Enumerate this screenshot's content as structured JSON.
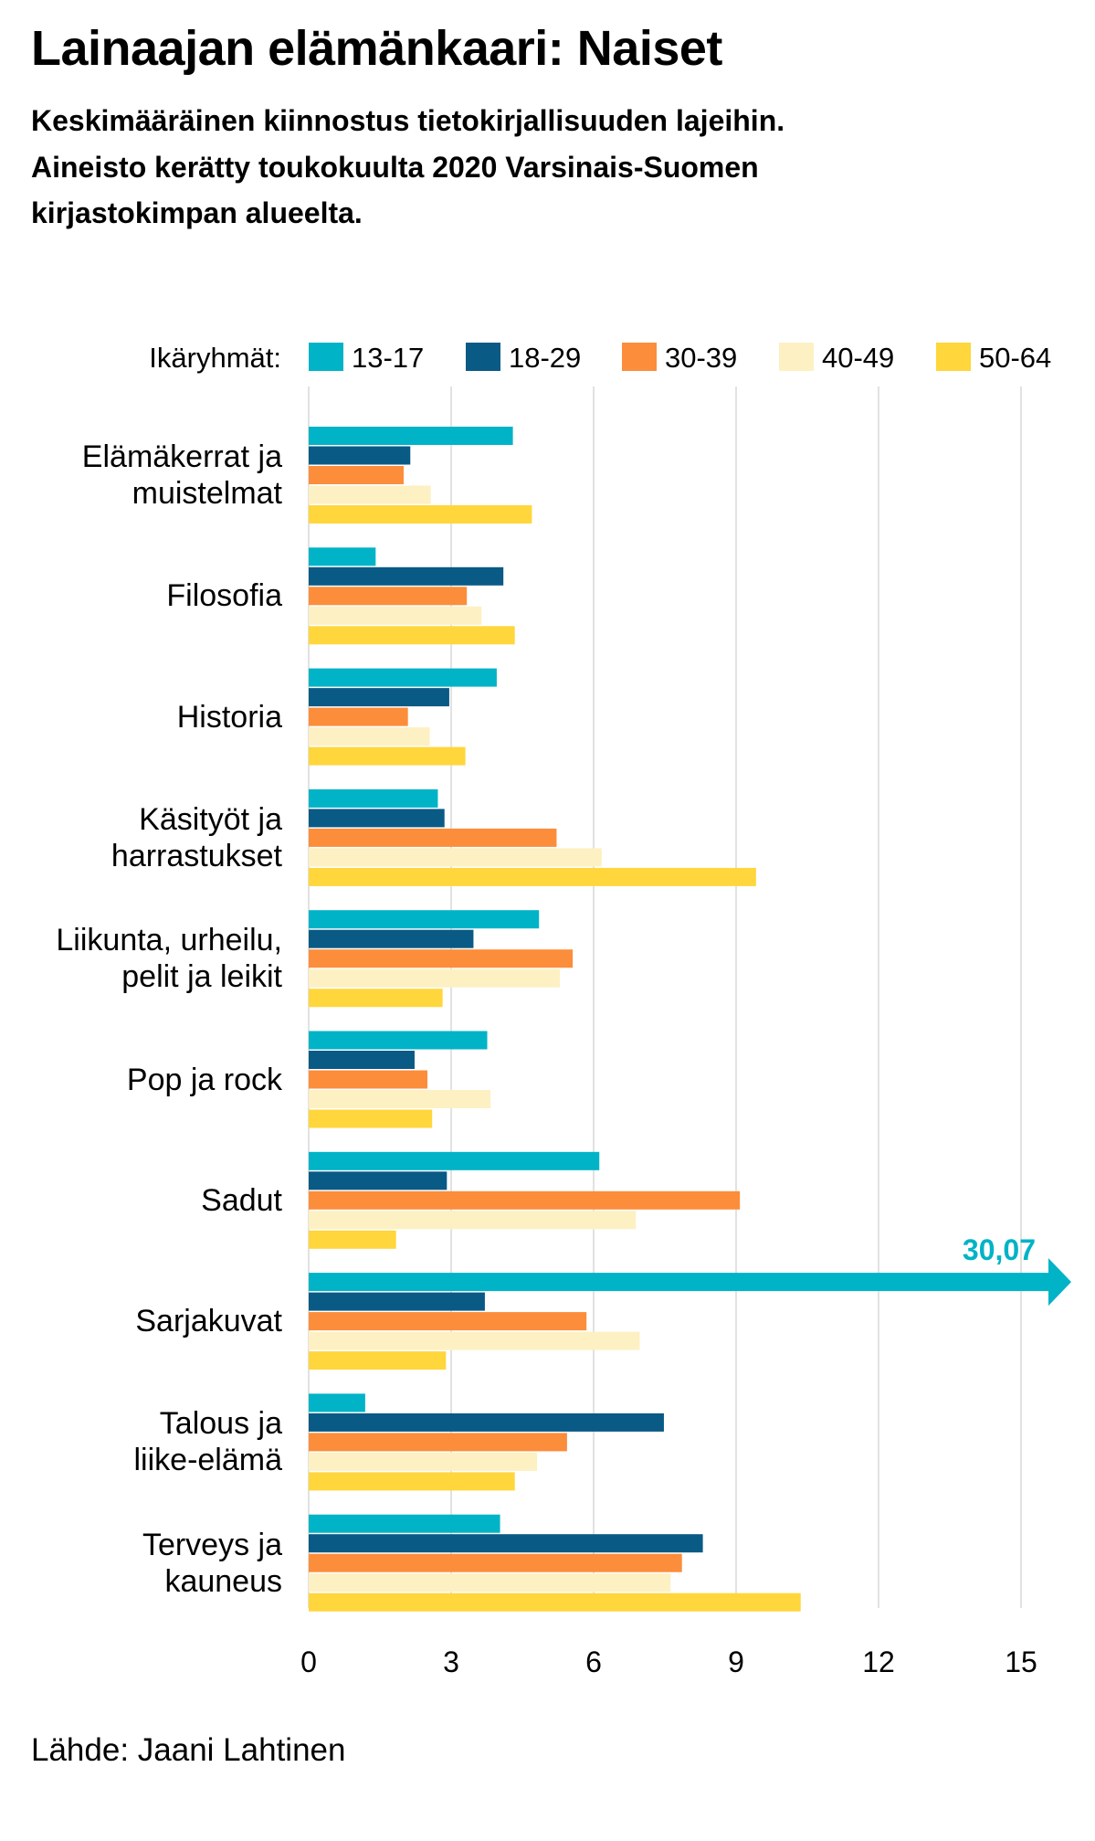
{
  "chart_data": {
    "type": "hbar",
    "title": "Lainaajan elämänkaari: Naiset",
    "subtitle": [
      "Keskimääräinen kiinnostus tietokirjallisuuden lajeihin.",
      "Aineisto kerätty toukokuulta 2020 Varsinais-Suomen",
      "kirjastokimpan alueelta."
    ],
    "legend_title": "Ikäryhmät:",
    "source": "Lähde: Jaani Lahtinen",
    "categories": [
      "Elämäkerrat ja\nmuistelmat",
      "Filosofia",
      "Historia",
      "Käsityöt ja\nharrastukset",
      "Liikunta, urheilu,\npelit ja leikit",
      "Pop ja rock",
      "Sadut",
      "Sarjakuvat",
      "Talous ja\nliike-elämä",
      "Terveys ja\nkauneus"
    ],
    "series": [
      {
        "name": "13-17",
        "color": "#00b3c7",
        "values": [
          4.3,
          1.41,
          3.96,
          2.72,
          4.85,
          3.76,
          6.12,
          30.07,
          1.19,
          4.03
        ],
        "value_labels": [
          null,
          null,
          null,
          null,
          null,
          null,
          null,
          "30,07",
          null,
          null
        ]
      },
      {
        "name": "18-29",
        "color": "#0a5a86",
        "values": [
          2.14,
          4.1,
          2.96,
          2.86,
          3.47,
          2.23,
          2.91,
          3.71,
          7.48,
          8.3
        ]
      },
      {
        "name": "30-39",
        "color": "#fc8d3a",
        "values": [
          2.0,
          3.33,
          2.09,
          5.22,
          5.56,
          2.5,
          9.08,
          5.85,
          5.44,
          7.86
        ]
      },
      {
        "name": "40-49",
        "color": "#fdf0c3",
        "values": [
          2.57,
          3.64,
          2.55,
          6.17,
          5.29,
          3.83,
          6.89,
          6.97,
          4.81,
          7.62
        ]
      },
      {
        "name": "50-64",
        "color": "#ffd63b",
        "values": [
          4.7,
          4.34,
          3.3,
          9.42,
          2.82,
          2.6,
          1.84,
          2.89,
          4.34,
          10.36
        ]
      }
    ],
    "xlim": [
      0,
      15
    ],
    "xticks": [
      0,
      3,
      6,
      9,
      12,
      15
    ],
    "grid": true
  }
}
